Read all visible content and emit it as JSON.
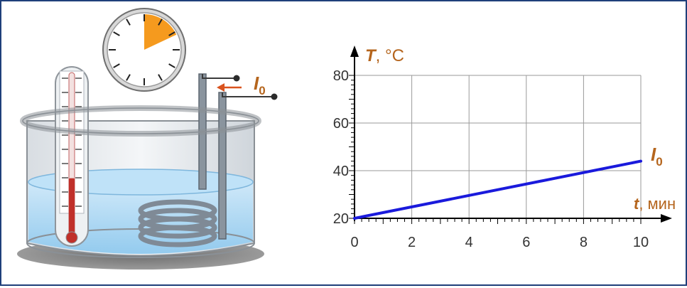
{
  "illustration": {
    "current_label": {
      "main": "I",
      "sub": "0"
    },
    "clock": {
      "elapsed_fraction": 0.18
    },
    "thermometer": {
      "level_fraction": 0.18
    },
    "colors": {
      "label": "#b5651d",
      "clock_sector": "#f59a1e",
      "thermometer_liquid": "#c0302a",
      "water": "#a8d6f2",
      "arrow": "#d9531e"
    }
  },
  "chart_data": {
    "type": "line",
    "ylabel": {
      "main": "T",
      "rest": ", °C"
    },
    "xlabel": {
      "main": "t",
      "rest": ", мин"
    },
    "x_ticks": [
      "0",
      "2",
      "4",
      "6",
      "8",
      "10"
    ],
    "y_ticks": [
      "20",
      "40",
      "60",
      "80"
    ],
    "xlim": [
      0,
      10
    ],
    "ylim": [
      20,
      80
    ],
    "grid": true,
    "series": [
      {
        "name": {
          "main": "I",
          "sub": "0"
        },
        "x": [
          0,
          10
        ],
        "y": [
          20,
          44
        ],
        "color": "#1a1adc"
      }
    ],
    "label_color": "#b5651d"
  }
}
